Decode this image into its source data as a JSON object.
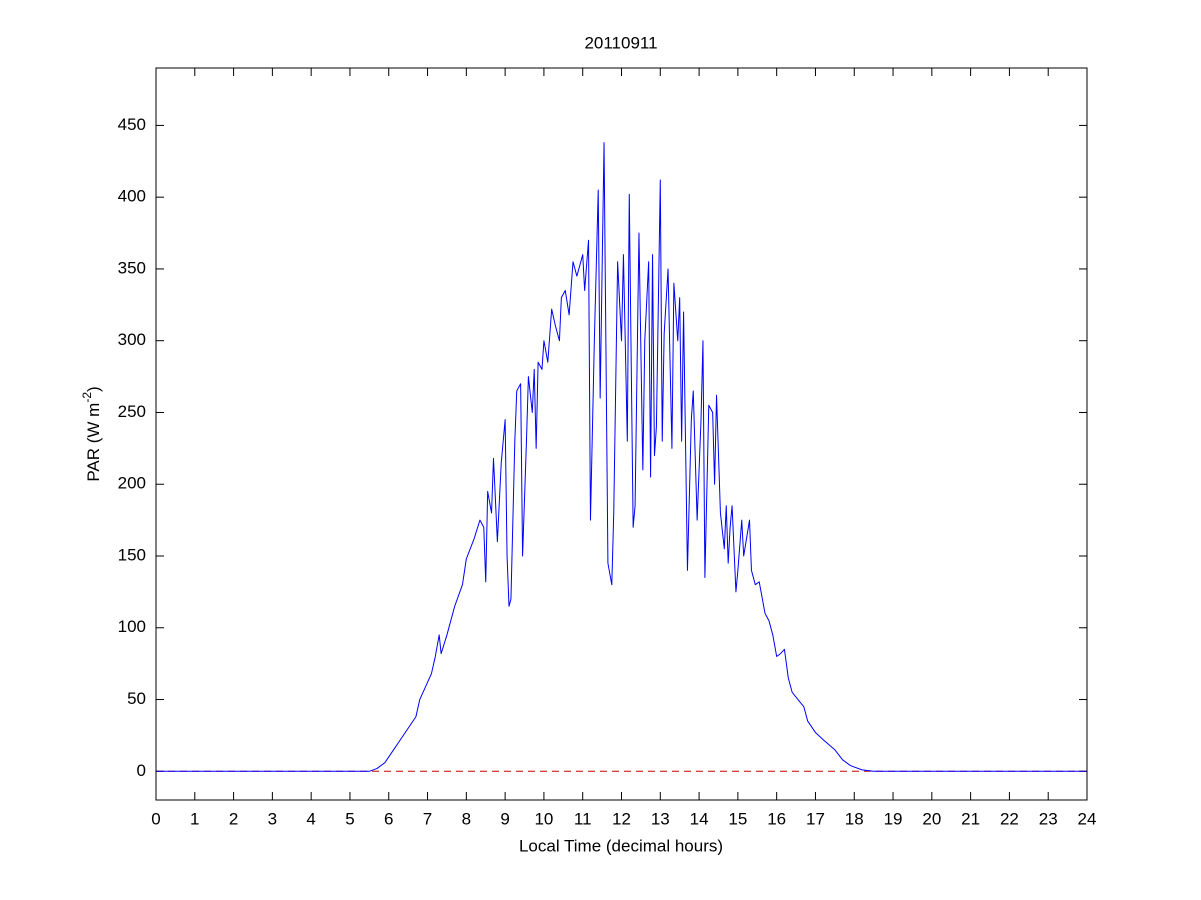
{
  "chart_data": {
    "type": "line",
    "title": "20110911",
    "x_label": "Local Time (decimal hours)",
    "y_label_parts": [
      "PAR (W m",
      "-2",
      ")"
    ],
    "xlim": [
      0,
      24
    ],
    "xticks": [
      0,
      1,
      2,
      3,
      4,
      5,
      6,
      7,
      8,
      9,
      10,
      11,
      12,
      13,
      14,
      15,
      16,
      17,
      18,
      19,
      20,
      21,
      22,
      23,
      24
    ],
    "ylim": [
      -20,
      490
    ],
    "yticks": [
      0,
      50,
      100,
      150,
      200,
      250,
      300,
      350,
      400,
      450
    ],
    "grid": false,
    "reference_line": {
      "y": 0,
      "color": "#cc0000",
      "style": "dashed"
    },
    "series": [
      {
        "color": "#0000ff",
        "x": [
          0,
          5.5,
          5.7,
          5.9,
          6.1,
          6.3,
          6.5,
          6.7,
          6.8,
          7.0,
          7.1,
          7.2,
          7.3,
          7.35,
          7.5,
          7.7,
          7.9,
          8.0,
          8.2,
          8.35,
          8.45,
          8.5,
          8.55,
          8.65,
          8.7,
          8.8,
          8.9,
          9.0,
          9.05,
          9.1,
          9.15,
          9.25,
          9.3,
          9.4,
          9.45,
          9.55,
          9.6,
          9.7,
          9.75,
          9.8,
          9.85,
          9.95,
          10.0,
          10.1,
          10.2,
          10.3,
          10.4,
          10.45,
          10.55,
          10.65,
          10.75,
          10.85,
          11.0,
          11.05,
          11.15,
          11.2,
          11.3,
          11.4,
          11.45,
          11.55,
          11.65,
          11.75,
          11.8,
          11.9,
          12.0,
          12.05,
          12.15,
          12.2,
          12.3,
          12.35,
          12.45,
          12.55,
          12.6,
          12.7,
          12.75,
          12.8,
          12.85,
          12.9,
          13.0,
          13.05,
          13.1,
          13.2,
          13.3,
          13.35,
          13.45,
          13.5,
          13.55,
          13.6,
          13.65,
          13.7,
          13.8,
          13.85,
          13.95,
          14.05,
          14.1,
          14.15,
          14.25,
          14.35,
          14.4,
          14.45,
          14.55,
          14.65,
          14.7,
          14.75,
          14.8,
          14.85,
          14.95,
          15.0,
          15.1,
          15.15,
          15.3,
          15.35,
          15.45,
          15.55,
          15.7,
          15.8,
          15.9,
          16.0,
          16.1,
          16.2,
          16.3,
          16.4,
          16.55,
          16.7,
          16.8,
          17.0,
          17.2,
          17.5,
          17.7,
          17.9,
          18.2,
          18.5,
          24
        ],
        "values": [
          0,
          0,
          2,
          6,
          14,
          22,
          30,
          38,
          50,
          62,
          68,
          80,
          95,
          82,
          95,
          115,
          130,
          148,
          162,
          175,
          170,
          132,
          195,
          180,
          218,
          160,
          215,
          245,
          150,
          115,
          120,
          230,
          265,
          270,
          150,
          230,
          275,
          250,
          280,
          225,
          285,
          280,
          300,
          285,
          322,
          310,
          300,
          330,
          335,
          318,
          355,
          345,
          360,
          335,
          370,
          175,
          300,
          405,
          260,
          438,
          145,
          130,
          180,
          355,
          300,
          360,
          230,
          402,
          170,
          185,
          375,
          210,
          300,
          355,
          205,
          360,
          220,
          240,
          412,
          230,
          305,
          350,
          225,
          340,
          300,
          330,
          230,
          320,
          230,
          140,
          245,
          265,
          175,
          245,
          300,
          135,
          255,
          250,
          200,
          262,
          180,
          155,
          185,
          145,
          170,
          185,
          125,
          140,
          175,
          150,
          175,
          140,
          130,
          132,
          110,
          105,
          95,
          80,
          82,
          85,
          65,
          55,
          50,
          45,
          35,
          27,
          22,
          15,
          8,
          4,
          1,
          0,
          0
        ]
      }
    ]
  }
}
